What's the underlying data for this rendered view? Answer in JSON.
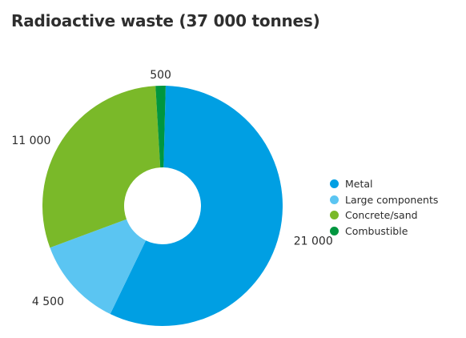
{
  "chart_data": {
    "type": "pie",
    "style": "donut",
    "title": "Radioactive waste (37 000 tonnes)",
    "categories": [
      "Metal",
      "Large components",
      "Concrete/sand",
      "Combustible"
    ],
    "values": [
      21000,
      4500,
      11000,
      500
    ],
    "value_labels": [
      "21 000",
      "4 500",
      "11 000",
      "500"
    ],
    "colors": [
      "#009fe3",
      "#5bc5f2",
      "#7ab929",
      "#00963f"
    ],
    "legend_position": "right"
  }
}
